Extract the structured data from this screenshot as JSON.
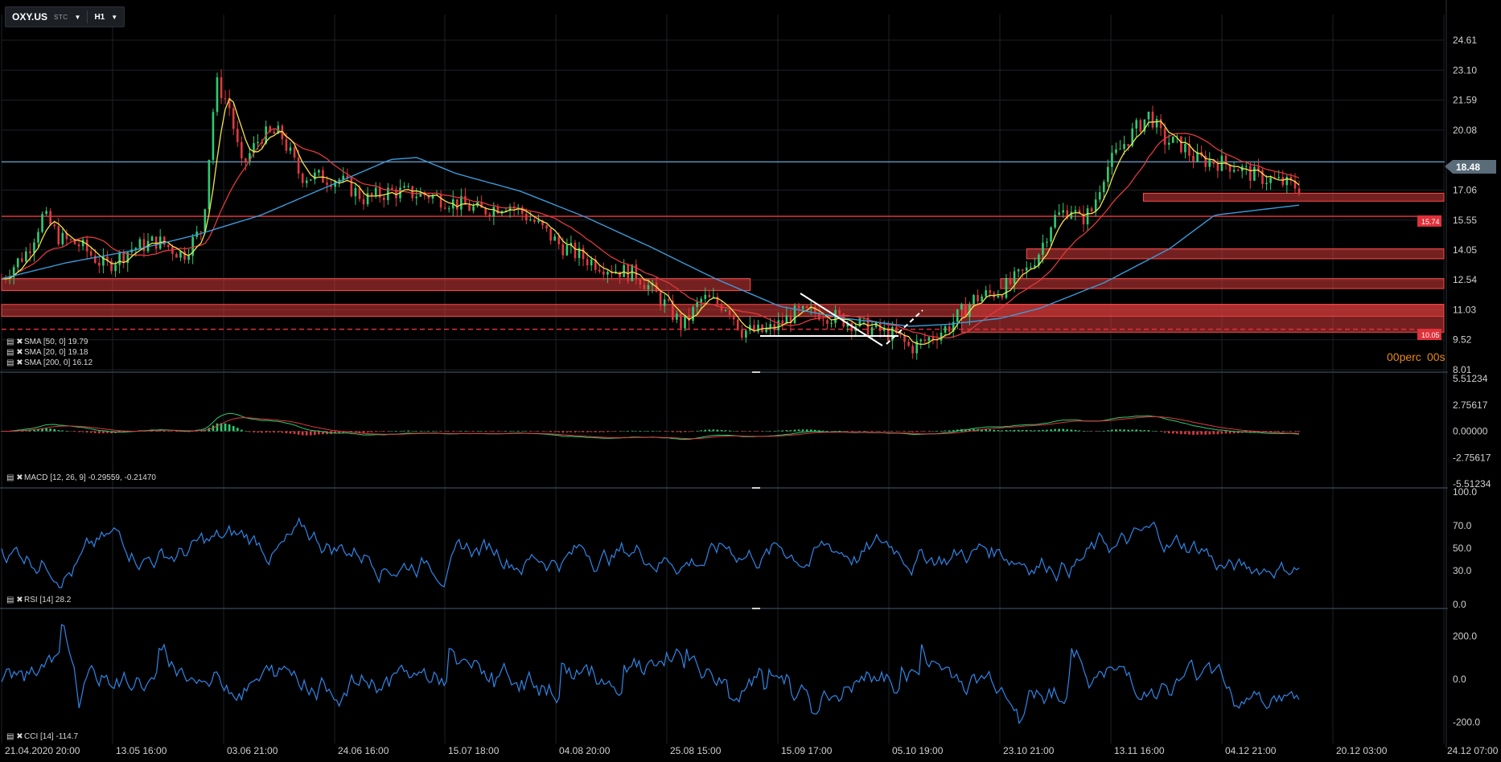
{
  "header": {
    "symbol": "OXY.US",
    "sub": "STC",
    "timeframe": "H1"
  },
  "colors": {
    "bg": "#000000",
    "grid": "#1c2228",
    "up": "#2ecc71",
    "down": "#e0393e",
    "sma50": "#3a9ad9",
    "sma20": "#d62d2d",
    "sma200": "#f2e44b",
    "rsi": "#2f86e8",
    "cci": "#2f86e8",
    "zone": "#d63a3a",
    "hline_blue": "#5b8fb8"
  },
  "current_price": {
    "label": "18.48",
    "value": 18.48
  },
  "level_labels": [
    {
      "label": "15.74",
      "value": 15.74
    },
    {
      "label": "10.05",
      "value": 10.05
    }
  ],
  "countdown": {
    "a": "00perc",
    "b": "00s"
  },
  "price_axis": [
    "24.61",
    "23.10",
    "21.59",
    "20.08",
    "17.06",
    "15.55",
    "14.05",
    "12.54",
    "11.03",
    "9.52",
    "8.01"
  ],
  "macd_axis": [
    "5.51234",
    "2.75617",
    "0.00000",
    "-2.75617",
    "-5.51234"
  ],
  "rsi_axis": [
    "100.0",
    "70.0",
    "50.0",
    "30.0",
    "0.0"
  ],
  "cci_axis": [
    "200.0",
    "0.0",
    "-200.0"
  ],
  "x_axis": [
    "21.04.2020  20:00",
    "13.05  16:00",
    "03.06  21:00",
    "24.06  16:00",
    "15.07  18:00",
    "04.08  20:00",
    "25.08  15:00",
    "15.09  17:00",
    "05.10  19:00",
    "23.10  21:00",
    "13.11  16:00",
    "04.12  21:00",
    "20.12  03:00",
    "24.12  07:00"
  ],
  "legends": {
    "sma_a": "SMA [50, 0] 19.79",
    "sma_b": "SMA [20, 0] 19.18",
    "sma_c": "SMA [200, 0] 16.12",
    "macd": "MACD [12, 26, 9] -0.29559, -0.21470",
    "rsi": "RSI [14] 28.2",
    "cci": "CCI [14] -114.7"
  },
  "chart_data": {
    "type": "line",
    "title": "OXY.US",
    "price_range": [
      8.01,
      25.5
    ],
    "price_path": [
      [
        0,
        12.6
      ],
      [
        0.02,
        14.0
      ],
      [
        0.032,
        15.8
      ],
      [
        0.045,
        14.6
      ],
      [
        0.06,
        14.3
      ],
      [
        0.08,
        13.2
      ],
      [
        0.1,
        14.1
      ],
      [
        0.12,
        14.5
      ],
      [
        0.14,
        13.8
      ],
      [
        0.155,
        15.2
      ],
      [
        0.165,
        22.5
      ],
      [
        0.175,
        21.4
      ],
      [
        0.185,
        18.2
      ],
      [
        0.2,
        19.8
      ],
      [
        0.215,
        19.9
      ],
      [
        0.23,
        17.8
      ],
      [
        0.26,
        17.6
      ],
      [
        0.28,
        16.6
      ],
      [
        0.3,
        17.0
      ],
      [
        0.33,
        16.8
      ],
      [
        0.35,
        16.4
      ],
      [
        0.37,
        16.0
      ],
      [
        0.39,
        16.4
      ],
      [
        0.41,
        15.5
      ],
      [
        0.43,
        14.3
      ],
      [
        0.45,
        13.6
      ],
      [
        0.47,
        13.1
      ],
      [
        0.49,
        12.8
      ],
      [
        0.51,
        11.4
      ],
      [
        0.525,
        10.2
      ],
      [
        0.54,
        11.6
      ],
      [
        0.56,
        11.2
      ],
      [
        0.57,
        10.0
      ],
      [
        0.585,
        9.9
      ],
      [
        0.595,
        10.1
      ],
      [
        0.61,
        10.8
      ],
      [
        0.63,
        10.9
      ],
      [
        0.65,
        10.5
      ],
      [
        0.67,
        10.1
      ],
      [
        0.69,
        9.7
      ],
      [
        0.7,
        9.1
      ],
      [
        0.71,
        9.4
      ],
      [
        0.73,
        10.2
      ],
      [
        0.75,
        11.6
      ],
      [
        0.77,
        12.0
      ],
      [
        0.79,
        13.0
      ],
      [
        0.8,
        14.0
      ],
      [
        0.81,
        15.6
      ],
      [
        0.825,
        16.2
      ],
      [
        0.83,
        15.5
      ],
      [
        0.84,
        16.0
      ],
      [
        0.85,
        18.0
      ],
      [
        0.865,
        19.4
      ],
      [
        0.875,
        20.2
      ],
      [
        0.885,
        20.9
      ],
      [
        0.895,
        19.6
      ],
      [
        0.91,
        19.3
      ],
      [
        0.92,
        18.6
      ],
      [
        0.935,
        18.5
      ],
      [
        0.95,
        18.3
      ],
      [
        0.965,
        17.8
      ],
      [
        1,
        17.2
      ]
    ],
    "sma200_path": [
      [
        0,
        12.6
      ],
      [
        0.05,
        13.4
      ],
      [
        0.1,
        14.0
      ],
      [
        0.15,
        14.8
      ],
      [
        0.2,
        15.8
      ],
      [
        0.25,
        17.2
      ],
      [
        0.3,
        18.6
      ],
      [
        0.32,
        18.7
      ],
      [
        0.35,
        17.9
      ],
      [
        0.4,
        17.0
      ],
      [
        0.45,
        15.7
      ],
      [
        0.5,
        14.2
      ],
      [
        0.55,
        12.6
      ],
      [
        0.6,
        11.2
      ],
      [
        0.65,
        10.6
      ],
      [
        0.7,
        10.2
      ],
      [
        0.73,
        10.3
      ],
      [
        0.77,
        10.6
      ],
      [
        0.8,
        11.1
      ],
      [
        0.85,
        12.4
      ],
      [
        0.9,
        14.1
      ],
      [
        0.935,
        15.8
      ],
      [
        1,
        16.3
      ]
    ],
    "horizontal_levels": [
      18.48,
      15.74,
      10.05
    ],
    "zones": [
      {
        "from": 0,
        "to": 0.577,
        "low": 12.0,
        "high": 12.6
      },
      {
        "from": 0,
        "to": 1,
        "low": 10.7,
        "high": 11.3
      },
      {
        "from": 0.88,
        "to": 1,
        "low": 16.5,
        "high": 16.9
      },
      {
        "from": 0.79,
        "to": 1,
        "low": 13.6,
        "high": 14.1
      },
      {
        "from": 0.77,
        "to": 1,
        "low": 12.1,
        "high": 12.6
      },
      {
        "from": 0.74,
        "to": 1,
        "low": 9.9,
        "high": 11.3
      }
    ],
    "macd_range": [
      -5.51234,
      5.51234
    ],
    "rsi_range": [
      0,
      100
    ],
    "rsi_last": 28.2,
    "cci_range": [
      -300,
      300
    ],
    "cci_last": -114.7
  }
}
